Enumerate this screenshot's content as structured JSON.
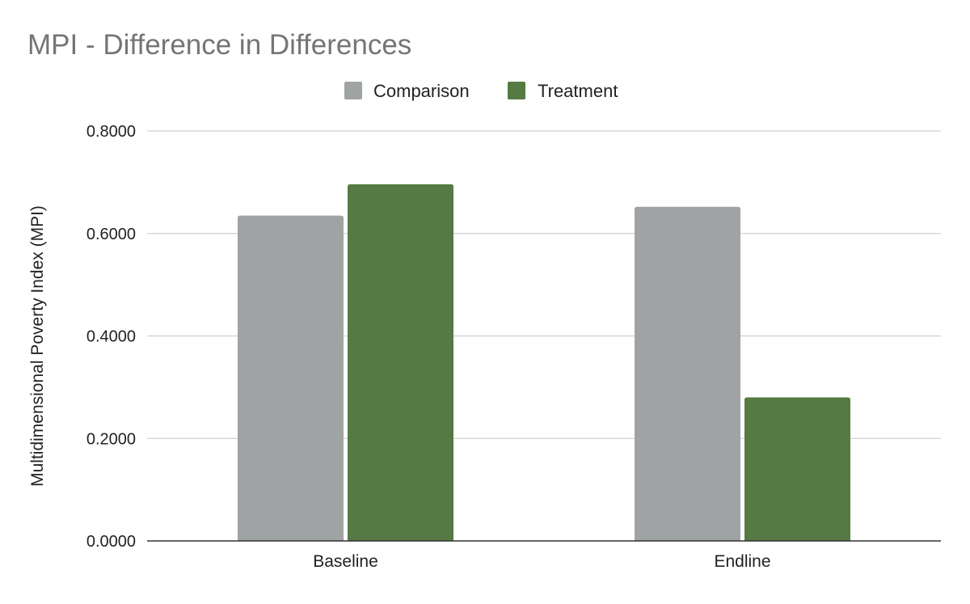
{
  "chart_data": {
    "type": "bar",
    "title": "MPI - Difference in Differences",
    "xlabel": "",
    "ylabel": "Multidimensional Poverty Index (MPI)",
    "categories": [
      "Baseline",
      "Endline"
    ],
    "series": [
      {
        "name": "Comparison",
        "color": "#a0a3a3",
        "values": [
          0.635,
          0.652
        ]
      },
      {
        "name": "Treatment",
        "color": "#557a43",
        "values": [
          0.696,
          0.28
        ]
      }
    ],
    "ylim": [
      0,
      0.8
    ],
    "yticks": [
      0.0,
      0.2,
      0.4,
      0.6,
      0.8
    ],
    "ytick_labels": [
      "0.0000",
      "0.2000",
      "0.4000",
      "0.6000",
      "0.8000"
    ],
    "grid": true,
    "legend_position": "top-center"
  },
  "colors": {
    "title": "#757575",
    "text": "#222222",
    "grid": "#d0d0d0",
    "axis": "#333333"
  }
}
